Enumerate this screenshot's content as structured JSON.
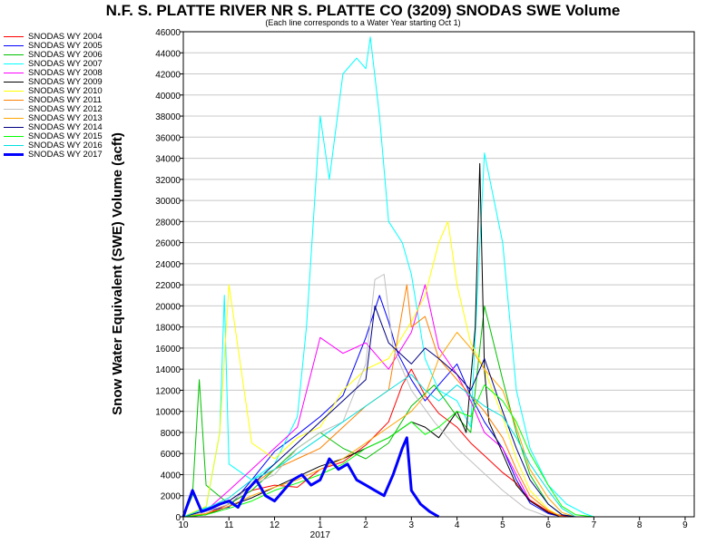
{
  "chart_data": {
    "type": "line",
    "title": "N.F. S. PLATTE RIVER NR S. PLATTE CO (3209) SNODAS SWE Volume",
    "subtitle": "(Each line corresponds to a Water Year starting Oct 1)",
    "ylabel": "Snow Water Equivalent (SWE) Volume (acft)",
    "xlabel": "",
    "ylim": [
      0,
      46000
    ],
    "y_ticks": [
      0,
      2000,
      4000,
      6000,
      8000,
      10000,
      12000,
      14000,
      16000,
      18000,
      20000,
      22000,
      24000,
      26000,
      28000,
      30000,
      32000,
      34000,
      36000,
      38000,
      40000,
      42000,
      44000,
      46000
    ],
    "x_domain": [
      10,
      21.2
    ],
    "x_ticks": [
      {
        "value": 10,
        "label": "10"
      },
      {
        "value": 11,
        "label": "11"
      },
      {
        "value": 12,
        "label": "12"
      },
      {
        "value": 13,
        "label": "1"
      },
      {
        "value": 14,
        "label": "2"
      },
      {
        "value": 15,
        "label": "3"
      },
      {
        "value": 16,
        "label": "4"
      },
      {
        "value": 17,
        "label": "5"
      },
      {
        "value": 18,
        "label": "6"
      },
      {
        "value": 19,
        "label": "7"
      },
      {
        "value": 20,
        "label": "8"
      },
      {
        "value": 21,
        "label": "9"
      }
    ],
    "x_year_label": {
      "value": 13,
      "label": "2017"
    },
    "grid": true,
    "legend_position": "left",
    "series": [
      {
        "name": "SNODAS WY 2004",
        "color": "#ff0000",
        "width": 1,
        "x": [
          10,
          10.5,
          11,
          11.5,
          12,
          12.5,
          13,
          13.5,
          14,
          14.5,
          14.8,
          15,
          15.3,
          15.6,
          16,
          16.3,
          16.6,
          17,
          17.3,
          17.6,
          18,
          18.3,
          18.6,
          19,
          19.5,
          20,
          20.5,
          21,
          21.2
        ],
        "y": [
          0,
          300,
          1200,
          2500,
          3000,
          2800,
          4500,
          5200,
          6800,
          9000,
          12500,
          14000,
          11500,
          9800,
          8500,
          7000,
          5800,
          4200,
          3200,
          1600,
          500,
          100,
          0,
          0,
          0,
          0,
          0,
          0,
          0
        ]
      },
      {
        "name": "SNODAS WY 2005",
        "color": "#0000ff",
        "width": 1,
        "x": [
          10,
          10.5,
          11,
          11.5,
          12,
          12.5,
          13,
          13.5,
          14,
          14.3,
          14.5,
          14.7,
          15,
          15.3,
          15.6,
          16,
          16.3,
          16.6,
          17,
          17.3,
          17.6,
          18,
          18.3,
          18.6,
          19,
          20,
          21,
          21.2
        ],
        "y": [
          0,
          600,
          900,
          3500,
          6200,
          7800,
          9500,
          11500,
          17000,
          21000,
          18500,
          15500,
          13000,
          11000,
          12500,
          14500,
          11500,
          9000,
          6500,
          3500,
          1300,
          300,
          0,
          0,
          0,
          0,
          0,
          0
        ]
      },
      {
        "name": "SNODAS WY 2006",
        "color": "#00c000",
        "width": 1,
        "x": [
          10,
          10.2,
          10.35,
          10.5,
          11,
          11.5,
          12,
          12.5,
          13,
          13.5,
          14,
          14.5,
          15,
          15.5,
          16,
          16.3,
          16.6,
          17,
          17.3,
          17.6,
          18,
          18.3,
          18.6,
          19,
          20,
          21,
          21.2
        ],
        "y": [
          0,
          2000,
          13000,
          3000,
          1200,
          2500,
          4500,
          6500,
          8000,
          6500,
          5500,
          7000,
          10500,
          12500,
          9500,
          8000,
          20000,
          13000,
          8000,
          4000,
          1200,
          200,
          0,
          0,
          0,
          0,
          0
        ]
      },
      {
        "name": "SNODAS WY 2007",
        "color": "#00ffff",
        "width": 1,
        "x": [
          10,
          10.5,
          10.8,
          10.9,
          11,
          11.5,
          12,
          12.5,
          12.7,
          13,
          13.2,
          13.5,
          13.8,
          14,
          14.1,
          14.3,
          14.5,
          14.8,
          15,
          15.3,
          15.6,
          16,
          16.3,
          16.6,
          17,
          17.3,
          17.6,
          18,
          18.4,
          18.8,
          19,
          20,
          21,
          21.2
        ],
        "y": [
          0,
          900,
          8000,
          21000,
          5000,
          3500,
          5000,
          9500,
          18000,
          38000,
          32000,
          42000,
          43500,
          42500,
          45500,
          38000,
          28000,
          26000,
          23000,
          15000,
          12000,
          11000,
          8500,
          34500,
          26000,
          12000,
          6500,
          3000,
          1200,
          300,
          0,
          0,
          0,
          0
        ]
      },
      {
        "name": "SNODAS WY 2008",
        "color": "#ff00ff",
        "width": 1,
        "x": [
          10,
          10.5,
          11,
          11.5,
          12,
          12.5,
          13,
          13.5,
          14,
          14.5,
          15,
          15.3,
          15.6,
          16,
          16.3,
          16.6,
          17,
          17.3,
          17.6,
          18,
          18.3,
          18.6,
          19,
          20,
          21,
          21.2
        ],
        "y": [
          0,
          600,
          2500,
          4500,
          6500,
          8500,
          17000,
          15500,
          16500,
          14000,
          17500,
          22000,
          16000,
          13500,
          11000,
          8000,
          6500,
          4000,
          1500,
          400,
          0,
          0,
          0,
          0,
          0,
          0
        ]
      },
      {
        "name": "SNODAS WY 2009",
        "color": "#000000",
        "width": 1,
        "x": [
          10,
          10.5,
          11,
          11.5,
          12,
          12.5,
          13,
          13.5,
          14,
          14.5,
          15,
          15.3,
          15.6,
          16,
          16.2,
          16.4,
          16.5,
          16.6,
          16.7,
          17,
          17.3,
          17.6,
          18,
          18.3,
          18.6,
          19,
          20,
          20.5,
          20.8,
          21,
          21.2
        ],
        "y": [
          0,
          200,
          1000,
          1800,
          2800,
          3800,
          4800,
          5500,
          6500,
          7500,
          9000,
          8500,
          7500,
          10000,
          8000,
          18000,
          33500,
          14000,
          9000,
          6000,
          3000,
          1500,
          400,
          0,
          0,
          0,
          0,
          0,
          0,
          0,
          0
        ]
      },
      {
        "name": "SNODAS WY 2010",
        "color": "#ffff00",
        "width": 1,
        "x": [
          10,
          10.5,
          10.8,
          11,
          11.5,
          12,
          12.5,
          13,
          13.5,
          14,
          14.5,
          15,
          15.3,
          15.6,
          15.8,
          16,
          16.3,
          16.6,
          17,
          17.3,
          17.6,
          18,
          18.3,
          19,
          20,
          21,
          21.2
        ],
        "y": [
          0,
          1000,
          8000,
          22000,
          7000,
          5500,
          7500,
          8500,
          12000,
          14000,
          15000,
          18500,
          21000,
          26000,
          28000,
          22000,
          16500,
          14000,
          9500,
          5500,
          2500,
          700,
          0,
          0,
          0,
          0,
          0
        ]
      },
      {
        "name": "SNODAS WY 2011",
        "color": "#ff8000",
        "width": 1,
        "x": [
          10,
          10.5,
          11,
          11.5,
          12,
          12.5,
          13,
          13.5,
          14,
          14.5,
          14.9,
          15,
          15.3,
          15.6,
          16,
          16.3,
          16.6,
          17,
          17.3,
          17.6,
          18,
          18.3,
          18.6,
          19,
          20,
          21,
          21.2
        ],
        "y": [
          0,
          500,
          1500,
          3000,
          4500,
          5500,
          6500,
          8500,
          10500,
          12000,
          22000,
          18000,
          19000,
          15000,
          13000,
          11500,
          10000,
          7500,
          4500,
          2000,
          600,
          0,
          0,
          0,
          0,
          0,
          0
        ]
      },
      {
        "name": "SNODAS WY 2012",
        "color": "#c0c0c0",
        "width": 1,
        "x": [
          10,
          10.5,
          11,
          11.5,
          12,
          12.5,
          13,
          13.5,
          14,
          14.2,
          14.4,
          14.6,
          15,
          15.5,
          16,
          16.5,
          17,
          17.5,
          18,
          19,
          20,
          21,
          21.2
        ],
        "y": [
          0,
          500,
          1200,
          3000,
          4000,
          6500,
          8000,
          9000,
          14500,
          22500,
          23000,
          16000,
          12000,
          9000,
          6500,
          4500,
          2500,
          800,
          0,
          0,
          0,
          0,
          0
        ]
      },
      {
        "name": "SNODAS WY 2013",
        "color": "#ffa500",
        "width": 1,
        "x": [
          10,
          10.5,
          11,
          11.5,
          12,
          12.5,
          13,
          13.5,
          14,
          14.5,
          15,
          15.3,
          15.6,
          16,
          16.3,
          16.6,
          17,
          17.3,
          17.6,
          18,
          18.3,
          18.6,
          19,
          20,
          21,
          21.2
        ],
        "y": [
          0,
          300,
          1000,
          2000,
          2800,
          3500,
          4500,
          5500,
          7000,
          8500,
          10000,
          11500,
          15000,
          17500,
          16000,
          14000,
          12000,
          8500,
          4500,
          1800,
          400,
          0,
          0,
          0,
          0,
          0
        ]
      },
      {
        "name": "SNODAS WY 2014",
        "color": "#000080",
        "width": 1,
        "x": [
          10,
          10.5,
          11,
          11.5,
          12,
          12.5,
          13,
          13.5,
          14,
          14.2,
          14.5,
          15,
          15.3,
          15.6,
          16,
          16.3,
          16.6,
          17,
          17.3,
          17.6,
          18,
          18.3,
          18.6,
          19,
          20,
          21,
          21.2
        ],
        "y": [
          0,
          600,
          1500,
          3000,
          5000,
          7000,
          9000,
          11000,
          13000,
          20000,
          16500,
          14500,
          16000,
          15000,
          13500,
          12000,
          15000,
          10000,
          6500,
          3500,
          1200,
          200,
          0,
          0,
          0,
          0,
          0
        ]
      },
      {
        "name": "SNODAS WY 2015",
        "color": "#00ff00",
        "width": 1,
        "x": [
          10,
          10.5,
          11,
          11.5,
          12,
          12.5,
          13,
          13.5,
          14,
          14.5,
          15,
          15.3,
          15.6,
          16,
          16.3,
          16.6,
          17,
          17.3,
          17.6,
          18,
          18.3,
          18.6,
          19,
          20,
          20.5,
          20.8,
          21,
          21.2
        ],
        "y": [
          0,
          200,
          800,
          1500,
          2500,
          3200,
          4000,
          5000,
          6500,
          7500,
          9000,
          7800,
          8500,
          10000,
          9500,
          12500,
          11000,
          9000,
          6000,
          3000,
          1000,
          200,
          0,
          0,
          0,
          0,
          0,
          0
        ]
      },
      {
        "name": "SNODAS WY 2016",
        "color": "#00e0e0",
        "width": 1,
        "x": [
          10,
          10.5,
          11,
          11.5,
          12,
          12.5,
          13,
          13.5,
          14,
          14.5,
          15,
          15.3,
          15.6,
          16,
          16.3,
          16.6,
          17,
          17.3,
          17.6,
          18,
          18.3,
          18.6,
          19,
          20,
          21,
          21.2
        ],
        "y": [
          0,
          800,
          1800,
          3500,
          4500,
          6000,
          7500,
          9000,
          10500,
          12000,
          13500,
          12000,
          11000,
          12500,
          11500,
          10500,
          9500,
          7500,
          5000,
          2500,
          800,
          0,
          0,
          0,
          0,
          0
        ]
      },
      {
        "name": "SNODAS WY 2017",
        "color": "#0000ff",
        "width": 3,
        "x": [
          10,
          10.2,
          10.4,
          10.6,
          10.8,
          11,
          11.2,
          11.4,
          11.6,
          11.8,
          12,
          12.2,
          12.4,
          12.6,
          12.8,
          13,
          13.2,
          13.4,
          13.6,
          13.8,
          14,
          14.2,
          14.4,
          14.6,
          14.8,
          14.9,
          15,
          15.2,
          15.4,
          15.6
        ],
        "y": [
          0,
          2500,
          500,
          800,
          1200,
          1500,
          900,
          2500,
          3500,
          2000,
          1500,
          2500,
          3500,
          4000,
          3000,
          3500,
          5500,
          4500,
          5000,
          3500,
          3000,
          2500,
          2000,
          4000,
          6500,
          7500,
          2500,
          1200,
          500,
          0
        ]
      }
    ]
  }
}
